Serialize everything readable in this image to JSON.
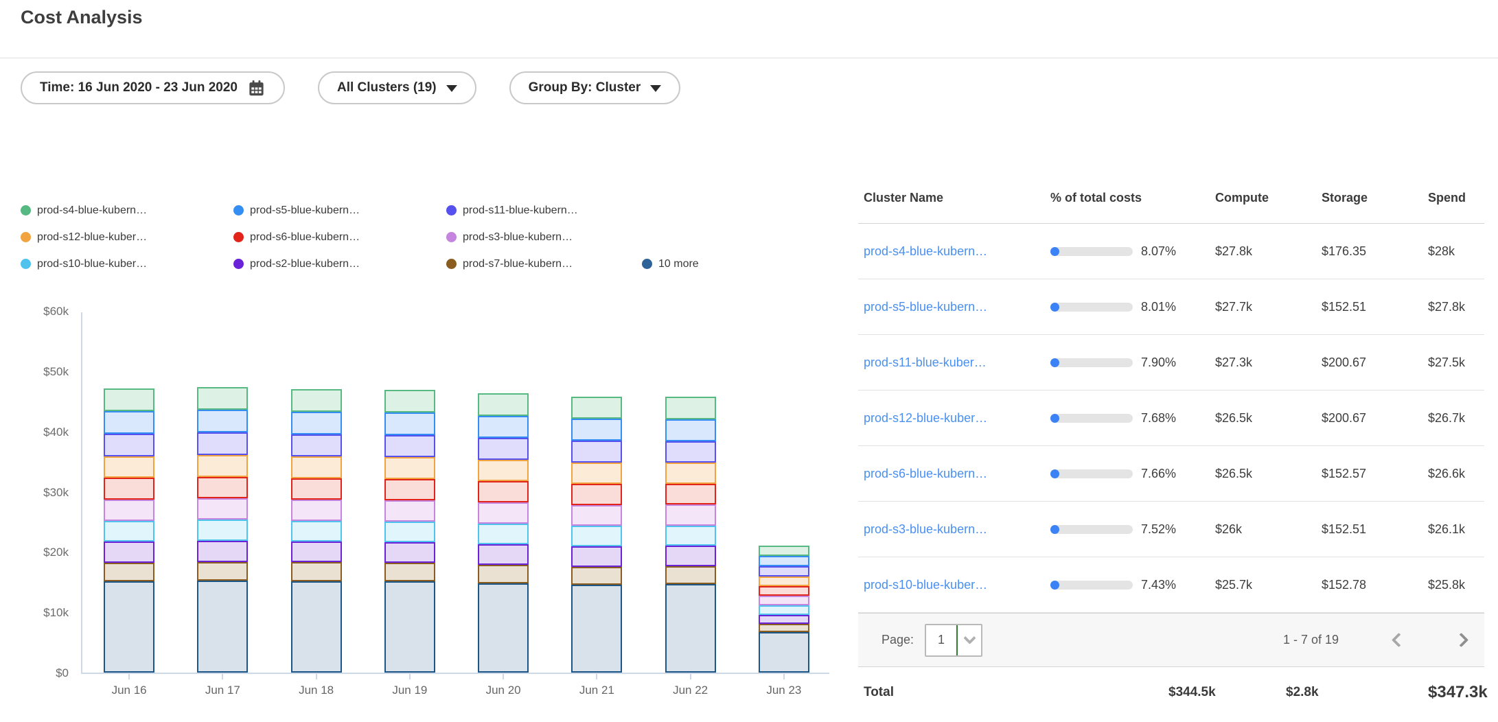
{
  "page_title": "Cost Analysis",
  "filters": {
    "time": {
      "label": "Time: 16 Jun 2020 - 23 Jun 2020",
      "icon": "calendar-icon"
    },
    "clusters": {
      "label": "All Clusters (19)",
      "icon": "chevron-down-icon"
    },
    "group_by": {
      "label": "Group By: Cluster",
      "icon": "chevron-down-icon"
    }
  },
  "chart_data": {
    "type": "bar",
    "stacked": true,
    "title": "",
    "xlabel": "",
    "ylabel": "",
    "unit": "USD thousands",
    "ylim": [
      0,
      60
    ],
    "yticks_top_to_bottom": [
      "$60k",
      "$50k",
      "$40k",
      "$30k",
      "$20k",
      "$10k",
      "$0"
    ],
    "grid": false,
    "legend_position": "top-left",
    "categories": [
      "Jun 16",
      "Jun 17",
      "Jun 18",
      "Jun 19",
      "Jun 20",
      "Jun 21",
      "Jun 22",
      "Jun 23"
    ],
    "series_bottom_to_top": [
      {
        "name": "10 more",
        "color": "#1c5687",
        "fill": "#d9e1ea",
        "values_k": [
          15.2,
          15.3,
          15.25,
          15.2,
          14.9,
          14.6,
          14.75,
          6.7
        ]
      },
      {
        "name": "prod-s7-blue-kubern…",
        "color": "#8a5c20",
        "fill": "#eae1d2",
        "values_k": [
          3.1,
          3.15,
          3.1,
          3.1,
          3.05,
          3.05,
          3.0,
          1.4
        ]
      },
      {
        "name": "prod-s2-blue-kubern…",
        "color": "#6a22d8",
        "fill": "#e5d8f6",
        "values_k": [
          3.5,
          3.5,
          3.45,
          3.45,
          3.4,
          3.4,
          3.35,
          1.55
        ]
      },
      {
        "name": "prod-s10-blue-kuber…",
        "color": "#4fc3ee",
        "fill": "#e1f5fc",
        "values_k": [
          3.5,
          3.5,
          3.5,
          3.45,
          3.45,
          3.4,
          3.4,
          1.6
        ]
      },
      {
        "name": "prod-s3-blue-kubern…",
        "color": "#c584dd",
        "fill": "#f4e6f8",
        "values_k": [
          3.55,
          3.55,
          3.5,
          3.5,
          3.5,
          3.45,
          3.45,
          1.6
        ]
      },
      {
        "name": "prod-s6-blue-kubern…",
        "color": "#e2231a",
        "fill": "#fadcd9",
        "values_k": [
          3.6,
          3.6,
          3.6,
          3.55,
          3.55,
          3.5,
          3.5,
          1.6
        ]
      },
      {
        "name": "prod-s12-blue-kuber…",
        "color": "#f0a33f",
        "fill": "#fcecd7",
        "values_k": [
          3.6,
          3.65,
          3.6,
          3.6,
          3.55,
          3.55,
          3.5,
          1.6
        ]
      },
      {
        "name": "prod-s11-blue-kubern…",
        "color": "#5550ee",
        "fill": "#dfddfb",
        "values_k": [
          3.7,
          3.75,
          3.7,
          3.7,
          3.65,
          3.65,
          3.6,
          1.7
        ]
      },
      {
        "name": "prod-s5-blue-kubern…",
        "color": "#338df3",
        "fill": "#dae8fd",
        "values_k": [
          3.75,
          3.8,
          3.75,
          3.75,
          3.7,
          3.7,
          3.65,
          1.7
        ]
      },
      {
        "name": "prod-s4-blue-kubern…",
        "color": "#56b981",
        "fill": "#def1e5",
        "values_k": [
          3.8,
          3.8,
          3.8,
          3.8,
          3.75,
          3.7,
          3.7,
          1.7
        ]
      }
    ],
    "legend_rows": [
      [
        {
          "label": "prod-s4-blue-kubern…",
          "color": "#56b981"
        },
        {
          "label": "prod-s5-blue-kubern…",
          "color": "#338df3"
        },
        {
          "label": "prod-s11-blue-kubern…",
          "color": "#5550ee"
        }
      ],
      [
        {
          "label": "prod-s12-blue-kuber…",
          "color": "#f0a33f"
        },
        {
          "label": "prod-s6-blue-kubern…",
          "color": "#e2231a"
        },
        {
          "label": "prod-s3-blue-kubern…",
          "color": "#c584dd"
        }
      ],
      [
        {
          "label": "prod-s10-blue-kuber…",
          "color": "#4fc3ee"
        },
        {
          "label": "prod-s2-blue-kubern…",
          "color": "#6a22d8"
        },
        {
          "label": "prod-s7-blue-kubern…",
          "color": "#8a5c20"
        },
        {
          "label": "10 more",
          "color": "#2d6399"
        }
      ]
    ]
  },
  "table": {
    "columns": [
      "Cluster Name",
      "% of total costs",
      "Compute",
      "Storage",
      "Spend"
    ],
    "rows": [
      {
        "name": "prod-s4-blue-kubern…",
        "pct": "8.07%",
        "pct_value": 8.07,
        "compute": "$27.8k",
        "storage": "$176.35",
        "spend": "$28k"
      },
      {
        "name": "prod-s5-blue-kubern…",
        "pct": "8.01%",
        "pct_value": 8.01,
        "compute": "$27.7k",
        "storage": "$152.51",
        "spend": "$27.8k"
      },
      {
        "name": "prod-s11-blue-kuber…",
        "pct": "7.90%",
        "pct_value": 7.9,
        "compute": "$27.3k",
        "storage": "$200.67",
        "spend": "$27.5k"
      },
      {
        "name": "prod-s12-blue-kuber…",
        "pct": "7.68%",
        "pct_value": 7.68,
        "compute": "$26.5k",
        "storage": "$200.67",
        "spend": "$26.7k"
      },
      {
        "name": "prod-s6-blue-kubern…",
        "pct": "7.66%",
        "pct_value": 7.66,
        "compute": "$26.5k",
        "storage": "$152.57",
        "spend": "$26.6k"
      },
      {
        "name": "prod-s3-blue-kubern…",
        "pct": "7.52%",
        "pct_value": 7.52,
        "compute": "$26k",
        "storage": "$152.51",
        "spend": "$26.1k"
      },
      {
        "name": "prod-s10-blue-kuber…",
        "pct": "7.43%",
        "pct_value": 7.43,
        "compute": "$25.7k",
        "storage": "$152.78",
        "spend": "$25.8k"
      }
    ]
  },
  "pagination": {
    "label": "Page:",
    "page": "1",
    "range": "1 - 7 of 19"
  },
  "totals": {
    "label": "Total",
    "compute": "$344.5k",
    "storage": "$2.8k",
    "spend": "$347.3k"
  },
  "colors": {
    "link": "#4a90f2",
    "progress_fill": "#3b82f6",
    "progress_track": "#e4e4e4",
    "axis": "#cdd9e8",
    "select_divider": "#2e7d32"
  }
}
